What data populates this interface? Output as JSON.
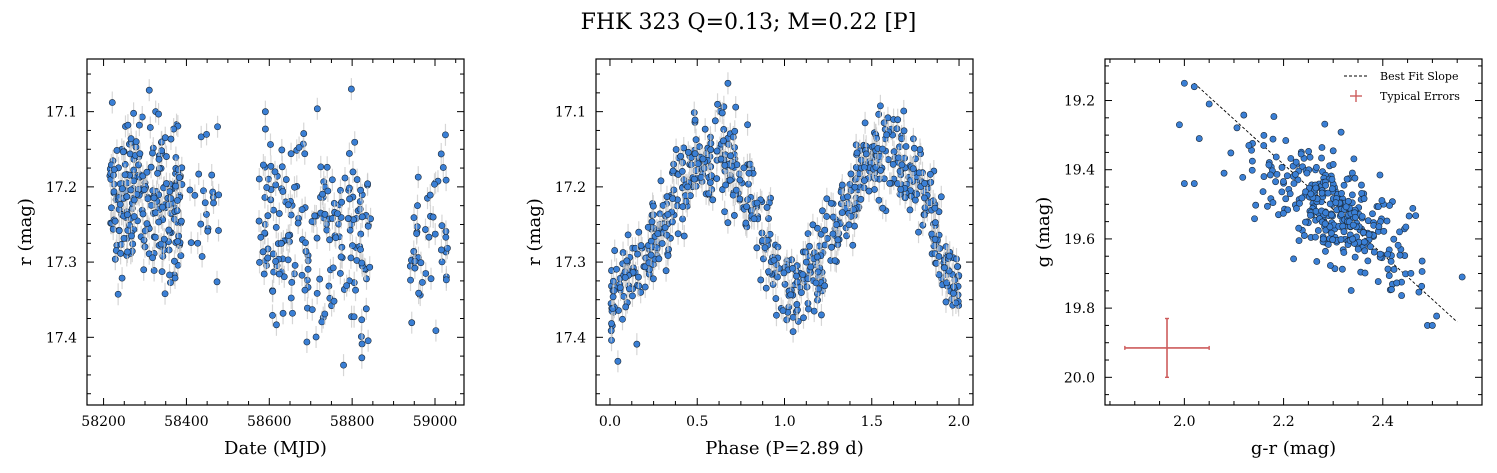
{
  "title": "FHK 323  Q=0.13; M=0.22 [P]",
  "colors": {
    "point_fill": "#3a7fd5",
    "point_edge": "#1b2a3a",
    "error_bar": "#cccccc",
    "best_fit": "#000000",
    "typical_error": "#cd5c5c"
  },
  "chart_data": [
    {
      "type": "scatter",
      "name": "light-curve",
      "xlabel": "Date (MJD)",
      "ylabel": "r (mag)",
      "xlim": [
        58160,
        59070
      ],
      "ylim": [
        17.49,
        17.03
      ],
      "y_inverted": true,
      "xticks": [
        58200,
        58400,
        58600,
        58800,
        59000
      ],
      "xtick_labels": [
        "58200",
        "58400",
        "58600",
        "58800",
        "59000"
      ],
      "yticks": [
        17.1,
        17.2,
        17.3,
        17.4
      ],
      "ytick_labels": [
        "17.1",
        "17.2",
        "17.3",
        "17.4"
      ],
      "grid": false,
      "segments": [
        {
          "x_range": [
            58215,
            58390
          ],
          "y_mean": 17.22,
          "y_spread": 0.07,
          "n": 240
        },
        {
          "x_range": [
            58405,
            58480
          ],
          "y_mean": 17.22,
          "y_spread": 0.07,
          "n": 22
        },
        {
          "x_range": [
            58575,
            58845
          ],
          "y_mean": 17.26,
          "y_spread": 0.09,
          "n": 200
        },
        {
          "x_range": [
            58940,
            59030
          ],
          "y_mean": 17.27,
          "y_spread": 0.09,
          "n": 45
        }
      ]
    },
    {
      "type": "scatter",
      "name": "phased-light-curve",
      "xlabel": "Phase (P=2.89 d)",
      "ylabel": "r (mag)",
      "period_days": 2.89,
      "xlim": [
        -0.08,
        2.08
      ],
      "ylim": [
        17.49,
        17.03
      ],
      "y_inverted": true,
      "xticks": [
        0.0,
        0.5,
        1.0,
        1.5,
        2.0
      ],
      "xtick_labels": [
        "0.0",
        "0.5",
        "1.0",
        "1.5",
        "2.0"
      ],
      "yticks": [
        17.1,
        17.2,
        17.3,
        17.4
      ],
      "ytick_labels": [
        "17.1",
        "17.2",
        "17.3",
        "17.4"
      ],
      "grid": false,
      "curve": {
        "x": [
          0.0,
          0.1,
          0.2,
          0.3,
          0.4,
          0.5,
          0.6,
          0.7,
          0.8,
          0.9,
          1.0
        ],
        "y": [
          17.35,
          17.33,
          17.3,
          17.25,
          17.2,
          17.17,
          17.16,
          17.17,
          17.21,
          17.28,
          17.35
        ]
      },
      "n_points": 700
    },
    {
      "type": "scatter",
      "name": "color-magnitude",
      "xlabel": "g-r (mag)",
      "ylabel": "g (mag)",
      "xlim": [
        1.84,
        2.6
      ],
      "ylim": [
        20.08,
        19.08
      ],
      "y_inverted": true,
      "xticks": [
        2.0,
        2.2,
        2.4
      ],
      "xtick_labels": [
        "2.0",
        "2.2",
        "2.4"
      ],
      "yticks": [
        19.2,
        19.4,
        19.6,
        19.8,
        20.0
      ],
      "ytick_labels": [
        "19.2",
        "19.4",
        "19.6",
        "19.8",
        "20.0"
      ],
      "grid": false,
      "best_fit": {
        "x": [
          2.02,
          2.55
        ],
        "y": [
          19.15,
          19.84
        ]
      },
      "typical_error": {
        "x": 1.965,
        "y": 19.915,
        "xerr": 0.085,
        "yerr": 0.085
      },
      "legend": {
        "position": "top-right",
        "entries": [
          "Best Fit Slope",
          "Typical Errors"
        ]
      },
      "cloud": {
        "center": [
          2.31,
          19.53
        ],
        "spread": [
          0.08,
          0.09
        ],
        "n": 330
      },
      "outliers": {
        "x": [
          2.0,
          2.02,
          2.05,
          1.99,
          2.03,
          2.0,
          2.02,
          2.08,
          2.13,
          2.16,
          2.56,
          2.49,
          2.5
        ],
        "y": [
          19.15,
          19.16,
          19.21,
          19.27,
          19.31,
          19.44,
          19.44,
          19.41,
          19.33,
          19.33,
          19.71,
          19.85,
          19.85
        ]
      }
    }
  ]
}
